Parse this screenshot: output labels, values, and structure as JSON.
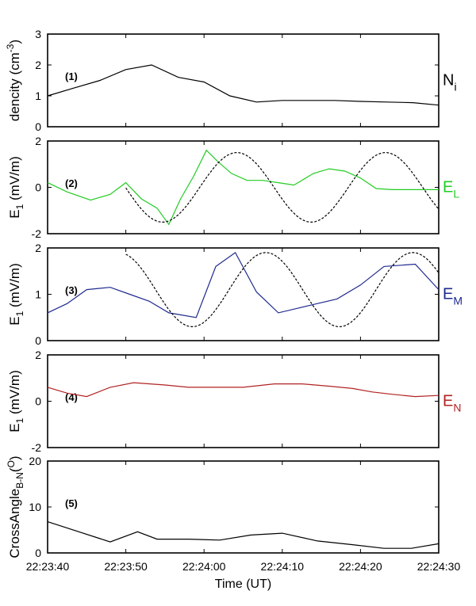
{
  "figure": {
    "xlabel": "Time (UT)",
    "xticks": [
      "22:23:40",
      "22:23:50",
      "22:24:00",
      "22:24:10",
      "22:24:20",
      "22:24:30"
    ]
  },
  "chart_data": [
    {
      "type": "line",
      "panel_label": "(1)",
      "ylabel": {
        "main": "dencity (cm",
        "sup": "-3",
        "tail": ")"
      },
      "ylim": [
        0,
        3
      ],
      "yticks": [
        "0",
        "1",
        "2",
        "3"
      ],
      "x_unit": "seconds after 22:23:40",
      "xlim": [
        0,
        50
      ],
      "series": [
        {
          "name": {
            "main": "N",
            "sub": "i"
          },
          "color": "#000000",
          "x": [
            0,
            3.3,
            6.7,
            10,
            13.3,
            16.7,
            20,
            23.3,
            26.7,
            30,
            33.3,
            36.7,
            40,
            43.3,
            46.7,
            50
          ],
          "y": [
            1.0,
            1.25,
            1.5,
            1.85,
            2.0,
            1.6,
            1.45,
            1.0,
            0.8,
            0.85,
            0.85,
            0.85,
            0.82,
            0.8,
            0.78,
            0.7
          ]
        }
      ]
    },
    {
      "type": "line",
      "panel_label": "(2)",
      "ylabel": {
        "main": "E",
        "sub": "1",
        "tail": " (mV/m)"
      },
      "ylim": [
        -2,
        2
      ],
      "yticks": [
        "-2",
        "0",
        "2"
      ],
      "xlim": [
        0,
        50
      ],
      "series": [
        {
          "name": {
            "main": "E",
            "sub": "L"
          },
          "color": "#22cc22",
          "x": [
            0,
            2.5,
            5.5,
            8,
            10,
            12,
            14,
            15.5,
            17,
            18.7,
            20.3,
            21.8,
            23.5,
            25.5,
            27.5,
            29.5,
            31.5,
            34,
            36,
            38,
            40,
            42,
            44,
            46,
            48,
            50
          ],
          "y": [
            0.2,
            -0.2,
            -0.55,
            -0.3,
            0.2,
            -0.5,
            -0.9,
            -1.6,
            -0.5,
            0.5,
            1.6,
            1.1,
            0.6,
            0.3,
            0.3,
            0.2,
            0.1,
            0.6,
            0.8,
            0.7,
            0.4,
            -0.05,
            -0.1,
            -0.1,
            -0.1,
            -0.1
          ]
        },
        {
          "name": "",
          "color": "#000000",
          "dashed": true,
          "wave": {
            "x_start": 10.0,
            "x_end": 50,
            "amplitude": 1.5,
            "offset": 0,
            "period": 19.0,
            "min_at": 14.7
          }
        }
      ]
    },
    {
      "type": "line",
      "panel_label": "(3)",
      "ylabel": {
        "main": "E",
        "sub": "1",
        "tail": " (mV/m)"
      },
      "ylim": [
        0,
        2
      ],
      "yticks": [
        "0",
        "1",
        "2"
      ],
      "xlim": [
        0,
        50
      ],
      "series": [
        {
          "name": {
            "main": "E",
            "sub": "M"
          },
          "color": "#1f2a8f",
          "x": [
            0,
            2.5,
            5,
            8,
            10.5,
            13,
            15.5,
            19,
            21.5,
            24,
            26.7,
            29.5,
            32,
            34.5,
            37,
            40,
            43,
            47,
            50
          ],
          "y": [
            0.6,
            0.8,
            1.1,
            1.15,
            1.0,
            0.85,
            0.6,
            0.5,
            1.6,
            1.9,
            1.05,
            0.6,
            0.7,
            0.8,
            0.9,
            1.2,
            1.6,
            1.65,
            1.1
          ]
        },
        {
          "name": "",
          "color": "#000000",
          "dashed": true,
          "wave": {
            "x_start": 10.0,
            "x_end": 50,
            "amplitude": 0.8,
            "offset": 1.1,
            "period": 18.8,
            "min_at": 18.5
          }
        }
      ]
    },
    {
      "type": "line",
      "panel_label": "(4)",
      "ylabel": {
        "main": "E",
        "sub": "1",
        "tail": " (mV/m)"
      },
      "ylim": [
        -2,
        2
      ],
      "yticks": [
        "-2",
        "0",
        "2"
      ],
      "xlim": [
        0,
        50
      ],
      "series": [
        {
          "name": {
            "main": "E",
            "sub": "N"
          },
          "color": "#b22222",
          "x": [
            0,
            2.5,
            5,
            8,
            11,
            15,
            18,
            21,
            25,
            29,
            32.5,
            36,
            39,
            41.5,
            44,
            47,
            50
          ],
          "y": [
            0.6,
            0.35,
            0.2,
            0.6,
            0.8,
            0.7,
            0.6,
            0.6,
            0.6,
            0.75,
            0.75,
            0.65,
            0.55,
            0.4,
            0.3,
            0.2,
            0.25
          ]
        }
      ]
    },
    {
      "type": "line",
      "panel_label": "(5)",
      "ylabel": {
        "main": "CrossAngle",
        "sub": "B-N",
        "tail": "(",
        "sup": "O",
        "tail2": ")"
      },
      "ylim": [
        0,
        20
      ],
      "yticks": [
        "0",
        "10",
        "20"
      ],
      "xlim": [
        0,
        50
      ],
      "series": [
        {
          "name": "",
          "color": "#000000",
          "x": [
            0,
            4,
            8,
            11.5,
            14,
            18,
            22,
            26,
            30,
            34.5,
            39,
            43,
            46.5,
            50
          ],
          "y": [
            6.8,
            4.6,
            2.4,
            4.6,
            3.0,
            3.0,
            2.8,
            3.9,
            4.3,
            2.6,
            1.8,
            1.0,
            1.0,
            2.0
          ]
        }
      ]
    }
  ]
}
